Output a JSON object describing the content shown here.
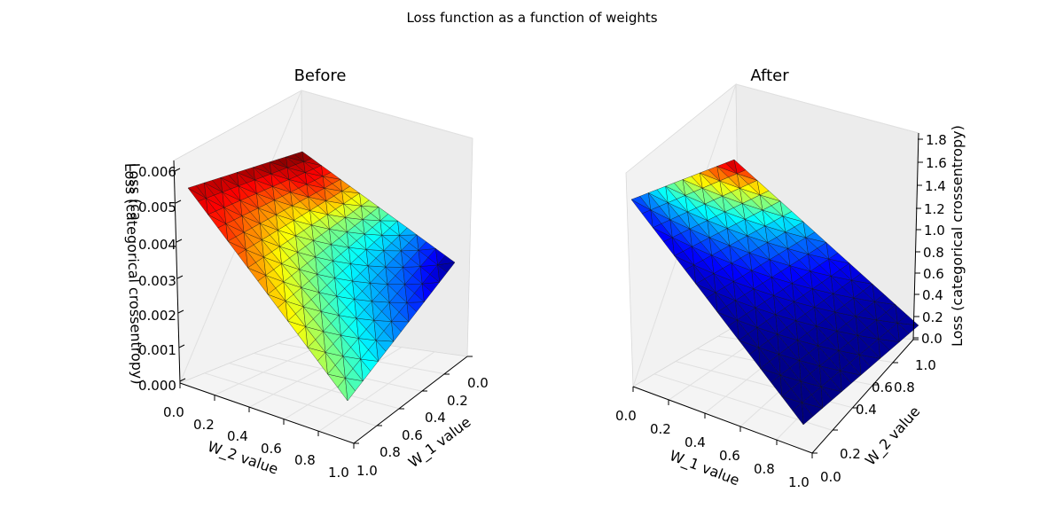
{
  "figure": {
    "suptitle": "Loss function as a function of weights"
  },
  "chart_data": [
    {
      "type": "surface3d",
      "title": "Before",
      "xlabel": "W_2 value",
      "ylabel": "W_1 value",
      "zlabel": "Loss (categorical crossentropy)",
      "zlabel_overlap_text": "Loss (ca",
      "xlim": [
        0,
        1
      ],
      "ylim": [
        0,
        1
      ],
      "zlim": [
        0,
        0.006
      ],
      "xticks": [
        "0.0",
        "0.2",
        "0.4",
        "0.6",
        "0.8",
        "1.0"
      ],
      "yticks": [
        "0.0",
        "0.2",
        "0.4",
        "0.6",
        "0.8",
        "1.0"
      ],
      "zticks": [
        "0.000",
        "0.001",
        "0.002",
        "0.003",
        "0.004",
        "0.005",
        "0.006"
      ],
      "colormap": "jet",
      "grid": true,
      "surface_corners_loss": {
        "W_2=0,W_1=0": 0.0056,
        "W_2=0,W_1=1": 0.0061,
        "W_2=1,W_1=0": 0.0029,
        "W_2=1,W_1=1": 0.0
      }
    },
    {
      "type": "surface3d",
      "title": "After",
      "xlabel": "W_1 value",
      "ylabel": "W_2 value",
      "zlabel": "Loss (categorical crossentropy)",
      "xlim": [
        0,
        1
      ],
      "ylim": [
        0,
        1
      ],
      "zlim": [
        0,
        1.8
      ],
      "xticks": [
        "0.0",
        "0.2",
        "0.4",
        "0.6",
        "0.8",
        "1.0"
      ],
      "yticks": [
        "0.0",
        "0.2",
        "0.4",
        "0.6",
        "0.8",
        "1.0"
      ],
      "zticks": [
        "0.0",
        "0.2",
        "0.4",
        "0.6",
        "0.8",
        "1.0",
        "1.2",
        "1.4",
        "1.6",
        "1.8"
      ],
      "colormap": "jet",
      "grid": true,
      "surface_corners_loss": {
        "W_1=0,W_2=0": 0.3,
        "W_1=0,W_2=1": 1.8,
        "W_1=1,W_2=0": 0.0,
        "W_1=1,W_2=1": 0.05
      }
    }
  ]
}
